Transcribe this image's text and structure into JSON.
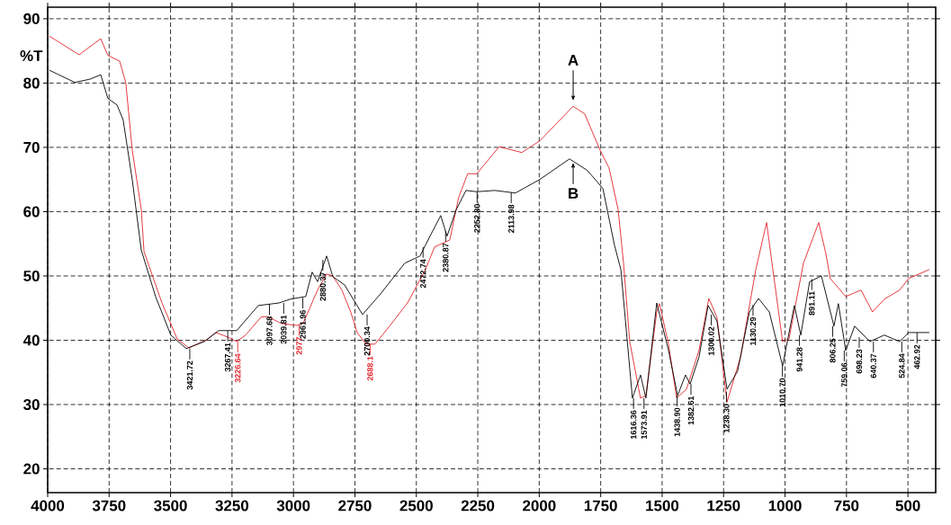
{
  "chart_data": {
    "type": "line",
    "ylabel": "%T",
    "xlim": [
      4000,
      387
    ],
    "ylim": [
      16.3,
      91.8
    ],
    "xticks": [
      4000,
      3750,
      3500,
      3250,
      3000,
      2750,
      2500,
      2250,
      2000,
      1750,
      1500,
      1250,
      1000,
      750,
      500
    ],
    "yticks": [
      20,
      30,
      40,
      50,
      60,
      70,
      80,
      90
    ],
    "grid": true,
    "series": [
      {
        "color": "#e3242b",
        "x": [
          3993,
          3872,
          3784,
          3755,
          3707,
          3682,
          3656,
          3619,
          3608,
          3535,
          3473,
          3425,
          3352,
          3316,
          3268,
          3231,
          3195,
          3132,
          3107,
          3048,
          2986,
          2961,
          2902,
          2865,
          2840,
          2803,
          2767,
          2741,
          2704,
          2668,
          2609,
          2536,
          2463,
          2426,
          2364,
          2328,
          2291,
          2254,
          2163,
          2071,
          1998,
          1862,
          1815,
          1753,
          1716,
          1679,
          1657,
          1632,
          1588,
          1566,
          1522,
          1511,
          1474,
          1441,
          1401,
          1350,
          1310,
          1277,
          1236,
          1181,
          1119,
          1075,
          1053,
          1010,
          984,
          925,
          863,
          834,
          816,
          753,
          691,
          644,
          596,
          534,
          497,
          413
        ],
        "values": [
          87.3,
          84.4,
          86.9,
          84.3,
          83.4,
          80,
          69.6,
          60.3,
          53.8,
          45.8,
          40.2,
          38.8,
          40.1,
          41.2,
          40.5,
          39.8,
          40.8,
          43.6,
          43.7,
          42.6,
          42.3,
          42.6,
          47.8,
          50.3,
          50,
          47.8,
          44.4,
          41.2,
          39.4,
          39.4,
          42.2,
          45.8,
          51,
          54.5,
          55.6,
          62.2,
          65.9,
          65.9,
          70.1,
          69.2,
          71,
          76.4,
          75.2,
          69.6,
          66.8,
          60.3,
          52,
          39.8,
          31,
          31.4,
          44.4,
          45.7,
          39.4,
          31,
          32.4,
          38.4,
          46.5,
          43.6,
          30.4,
          37.4,
          51,
          58.3,
          52,
          39.8,
          40.2,
          52,
          58.3,
          53.5,
          49.6,
          46.8,
          47.8,
          44.4,
          46.4,
          47.8,
          49.6,
          51
        ]
      },
      {
        "color": "#000000",
        "x": [
          3993,
          3890,
          3828,
          3784,
          3755,
          3718,
          3693,
          3656,
          3619,
          3561,
          3499,
          3436,
          3363,
          3304,
          3231,
          3143,
          3059,
          3012,
          2950,
          2924,
          2902,
          2865,
          2840,
          2792,
          2719,
          2646,
          2547,
          2485,
          2463,
          2401,
          2375,
          2338,
          2298,
          2254,
          2181,
          2097,
          1998,
          1877,
          1804,
          1741,
          1694,
          1668,
          1621,
          1588,
          1566,
          1522,
          1474,
          1437,
          1405,
          1386,
          1350,
          1313,
          1277,
          1236,
          1193,
          1145,
          1108,
          1064,
          1010,
          962,
          936,
          900,
          852,
          801,
          783,
          753,
          717,
          655,
          596,
          534,
          497,
          413
        ],
        "values": [
          82,
          80.1,
          80.6,
          81.3,
          77.6,
          76.6,
          74.3,
          65,
          54,
          46.8,
          40.8,
          38.7,
          39.8,
          41.5,
          41.5,
          45.4,
          45.8,
          46.4,
          46.8,
          50.6,
          49.1,
          53.1,
          49.9,
          48.6,
          44,
          47.2,
          52,
          53.1,
          54.8,
          59.4,
          56.2,
          60.3,
          63.3,
          63.1,
          63.3,
          62.9,
          65,
          68.2,
          66.4,
          63.6,
          54.8,
          51,
          31,
          34.6,
          31,
          45.8,
          38.4,
          31.4,
          34.6,
          33.2,
          37.4,
          45.4,
          43,
          32.4,
          35.2,
          44.4,
          46.5,
          44.4,
          36,
          45.4,
          40.8,
          49.1,
          50,
          42.2,
          45.7,
          38.4,
          42.2,
          39.8,
          40.8,
          39.8,
          41.2,
          41.2
        ]
      }
    ],
    "annotations": [
      {
        "text": "A",
        "x": 1862,
        "y": 76.4
      },
      {
        "text": "B",
        "x": 1862,
        "y": 68.2
      },
      {
        "text": "3421.72",
        "x": 3421.72,
        "y": 38.7
      },
      {
        "text": "3267.41",
        "x": 3267.41,
        "y": 41.5
      },
      {
        "text": "3226.64",
        "x": 3226.64,
        "y": 39.8
      },
      {
        "text": "3097.68",
        "x": 3097.68,
        "y": 45.6
      },
      {
        "text": "3039.81",
        "x": 3039.81,
        "y": 45.8
      },
      {
        "text": "2977",
        "x": 2977,
        "y": 42.4
      },
      {
        "text": "2961.96",
        "x": 2961.96,
        "y": 46.6
      },
      {
        "text": "2880.37",
        "x": 2880.37,
        "y": 52.5
      },
      {
        "text": "2700.34",
        "x": 2700.34,
        "y": 44
      },
      {
        "text": "2688.1",
        "x": 2688.1,
        "y": 39.4
      },
      {
        "text": "2472.74",
        "x": 2472.74,
        "y": 54.5
      },
      {
        "text": "2380.87",
        "x": 2380.87,
        "y": 57
      },
      {
        "text": "2252.80",
        "x": 2252.8,
        "y": 63.1
      },
      {
        "text": "2113.98",
        "x": 2113.98,
        "y": 63
      },
      {
        "text": "1616.36",
        "x": 1616.36,
        "y": 31
      },
      {
        "text": "1573.91",
        "x": 1573.91,
        "y": 31
      },
      {
        "text": "1438.90",
        "x": 1438.9,
        "y": 31.4
      },
      {
        "text": "1382.61",
        "x": 1382.61,
        "y": 33.2
      },
      {
        "text": "1300.02",
        "x": 1300.02,
        "y": 44
      },
      {
        "text": "1238.30",
        "x": 1238.3,
        "y": 32
      },
      {
        "text": "1130.29",
        "x": 1130.29,
        "y": 45.5
      },
      {
        "text": "1010.70",
        "x": 1010.7,
        "y": 36
      },
      {
        "text": "941.28",
        "x": 941.28,
        "y": 40.8
      },
      {
        "text": "891.11",
        "x": 891.11,
        "y": 49.5
      },
      {
        "text": "806.25",
        "x": 806.25,
        "y": 42.2
      },
      {
        "text": "759.06",
        "x": 759.06,
        "y": 38.4
      },
      {
        "text": "698.23",
        "x": 698.23,
        "y": 40.5
      },
      {
        "text": "640.37",
        "x": 640.37,
        "y": 39.8
      },
      {
        "text": "524.84",
        "x": 524.84,
        "y": 39.8
      },
      {
        "text": "462.92",
        "x": 462.92,
        "y": 41.2
      }
    ]
  }
}
